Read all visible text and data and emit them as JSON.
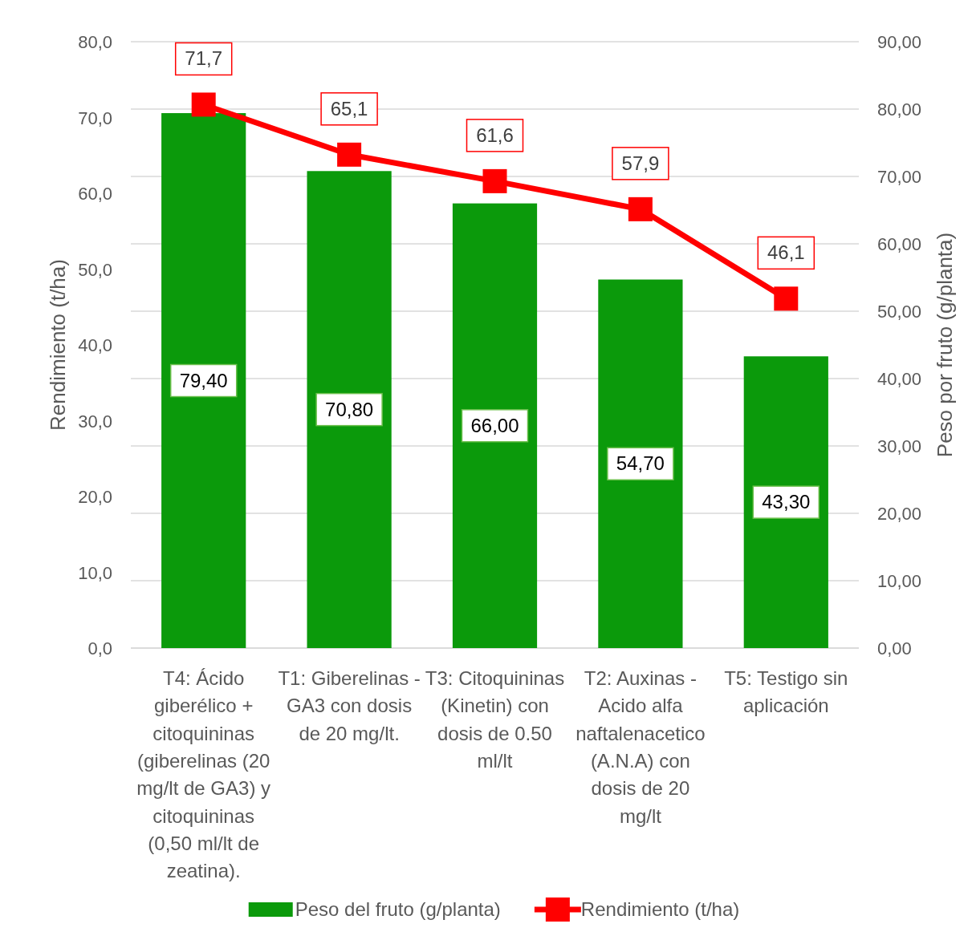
{
  "chart_data": {
    "type": "bar",
    "ylabel": "Rendimiento (t/ha)",
    "y2label": "Peso por fruto (g/planta)",
    "categories": [
      "T4: Ácido giberélico + citoquininas (giberelinas (20 mg/lt de GA3) y citoquininas (0,50 ml/lt de zeatina).",
      "T1: Giberelinas - GA3 con dosis de 20 mg/lt.",
      "T3: Citoquininas (Kinetin) con dosis de 0.50 ml/lt",
      "T2: Auxinas - Acido alfa naftalenacetico (A.N.A) con dosis de 20 mg/lt",
      "T5: Testigo sin aplicación"
    ],
    "series": [
      {
        "name": "Peso del fruto (g/planta)",
        "axis": "y2",
        "color": "#0b9a0b",
        "values": [
          79.4,
          70.8,
          66.0,
          54.7,
          43.3
        ],
        "value_labels": [
          "79,40",
          "70,80",
          "66,00",
          "54,70",
          "43,30"
        ]
      },
      {
        "name": "Rendimiento (t/ha)",
        "type": "line",
        "axis": "y",
        "color": "#ff0000",
        "marker": "square",
        "values": [
          71.7,
          65.1,
          61.6,
          57.9,
          46.1
        ],
        "value_labels": [
          "71,7",
          "65,1",
          "61,6",
          "57,9",
          "46,1"
        ]
      }
    ],
    "ylim": [
      0,
      80
    ],
    "yticks": [
      {
        "value": 0,
        "label": "0,0"
      },
      {
        "value": 10,
        "label": "10,0"
      },
      {
        "value": 20,
        "label": "20,0"
      },
      {
        "value": 30,
        "label": "30,0"
      },
      {
        "value": 40,
        "label": "40,0"
      },
      {
        "value": 50,
        "label": "50,0"
      },
      {
        "value": 60,
        "label": "60,0"
      },
      {
        "value": 70,
        "label": "70,0"
      },
      {
        "value": 80,
        "label": "80,0"
      }
    ],
    "y2lim": [
      0,
      90
    ],
    "y2ticks": [
      {
        "value": 0,
        "label": "0,00"
      },
      {
        "value": 10,
        "label": "10,00"
      },
      {
        "value": 20,
        "label": "20,00"
      },
      {
        "value": 30,
        "label": "30,00"
      },
      {
        "value": 40,
        "label": "40,00"
      },
      {
        "value": 50,
        "label": "50,00"
      },
      {
        "value": 60,
        "label": "60,00"
      },
      {
        "value": 70,
        "label": "70,00"
      },
      {
        "value": 80,
        "label": "80,00"
      },
      {
        "value": 90,
        "label": "90,00"
      }
    ],
    "grid": "y2",
    "legend": "bottom"
  }
}
